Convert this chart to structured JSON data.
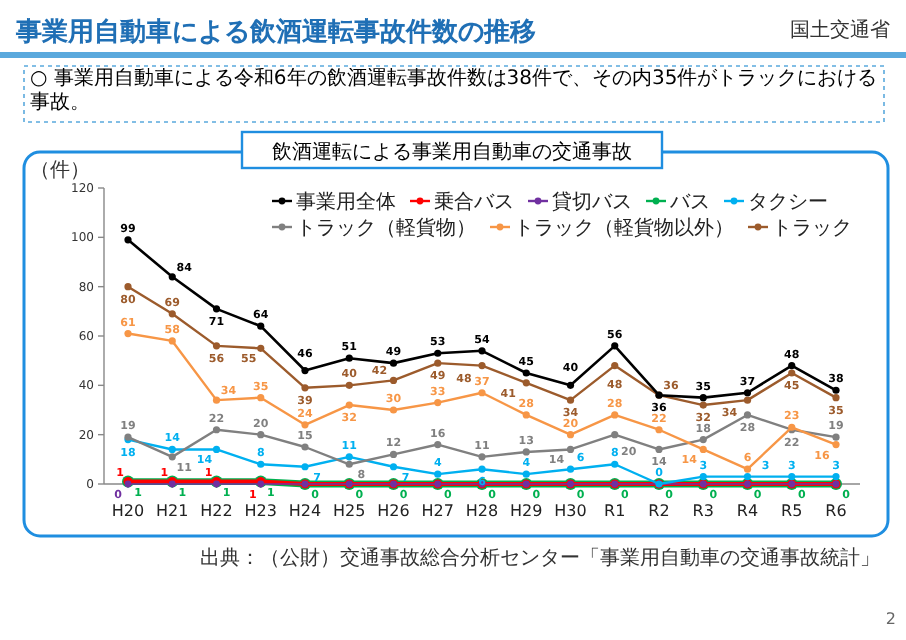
{
  "chart_data": {
    "type": "line",
    "title": "事業用自動車による飲酒運転事故件数の推移",
    "subtitle": "○ 事業用自動車による令和6年の飲酒運転事故件数は38件で、その内35件がトラックにおける事故。",
    "annotations": [
      "飲酒運転による事業用自動車の交通事故",
      "出典：（公財）交通事故総合分析センター「事業用自動車の交通事故統計」",
      "国土交通省",
      "2"
    ],
    "ylabel": "（件）",
    "ylim": [
      0,
      120
    ],
    "yticks": [
      0,
      20,
      40,
      60,
      80,
      100,
      120
    ],
    "legend": "top",
    "marker": "circle",
    "data_labels": true,
    "categories": [
      "H20",
      "H21",
      "H22",
      "H23",
      "H24",
      "H25",
      "H26",
      "H27",
      "H28",
      "H29",
      "H30",
      "R1",
      "R2",
      "R3",
      "R4",
      "R5",
      "R6"
    ],
    "series": [
      {
        "name": "事業用全体",
        "color": "#000000",
        "values": [
          99,
          84,
          71,
          64,
          46,
          51,
          49,
          53,
          54,
          45,
          40,
          56,
          36,
          35,
          37,
          48,
          38
        ]
      },
      {
        "name": "乗合バス",
        "color": "#ff0000",
        "values": [
          1,
          1,
          1,
          1,
          0,
          0,
          0,
          0,
          0,
          0,
          0,
          0,
          0,
          0,
          0,
          0,
          0
        ],
        "value_labels": [
          "1",
          "1",
          "1",
          "1",
          null,
          null,
          null,
          null,
          null,
          null,
          null,
          null,
          null,
          null,
          null,
          null,
          null
        ]
      },
      {
        "name": "貸切バス",
        "color": "#7030a0",
        "values": [
          0,
          0,
          0,
          0,
          0,
          0,
          0,
          0,
          0,
          0,
          0,
          0,
          0,
          0,
          0,
          0,
          0
        ],
        "value_labels": [
          "0",
          null,
          null,
          null,
          null,
          null,
          null,
          null,
          null,
          null,
          null,
          null,
          null,
          null,
          null,
          null,
          null
        ]
      },
      {
        "name": "バス",
        "color": "#00b050",
        "values": [
          1,
          1,
          1,
          1,
          0,
          0,
          0,
          0,
          0,
          0,
          0,
          0,
          0,
          0,
          0,
          0,
          0
        ]
      },
      {
        "name": "タクシー",
        "color": "#00b0f0",
        "values": [
          18,
          14,
          14,
          8,
          7,
          11,
          7,
          4,
          6,
          4,
          6,
          8,
          0,
          3,
          3,
          3,
          3
        ]
      },
      {
        "name": "トラック（軽貨物）",
        "color": "#808080",
        "values": [
          19,
          11,
          22,
          20,
          15,
          8,
          12,
          16,
          11,
          13,
          14,
          20,
          14,
          18,
          28,
          22,
          19
        ]
      },
      {
        "name": "トラック（軽貨物以外）",
        "color": "#f79646",
        "values": [
          61,
          58,
          34,
          35,
          24,
          32,
          30,
          33,
          37,
          28,
          20,
          28,
          22,
          14,
          6,
          23,
          16
        ]
      },
      {
        "name": "トラック",
        "color": "#9c5b2c",
        "values": [
          80,
          69,
          56,
          55,
          39,
          40,
          42,
          49,
          48,
          41,
          34,
          48,
          36,
          32,
          34,
          45,
          35
        ]
      }
    ]
  }
}
